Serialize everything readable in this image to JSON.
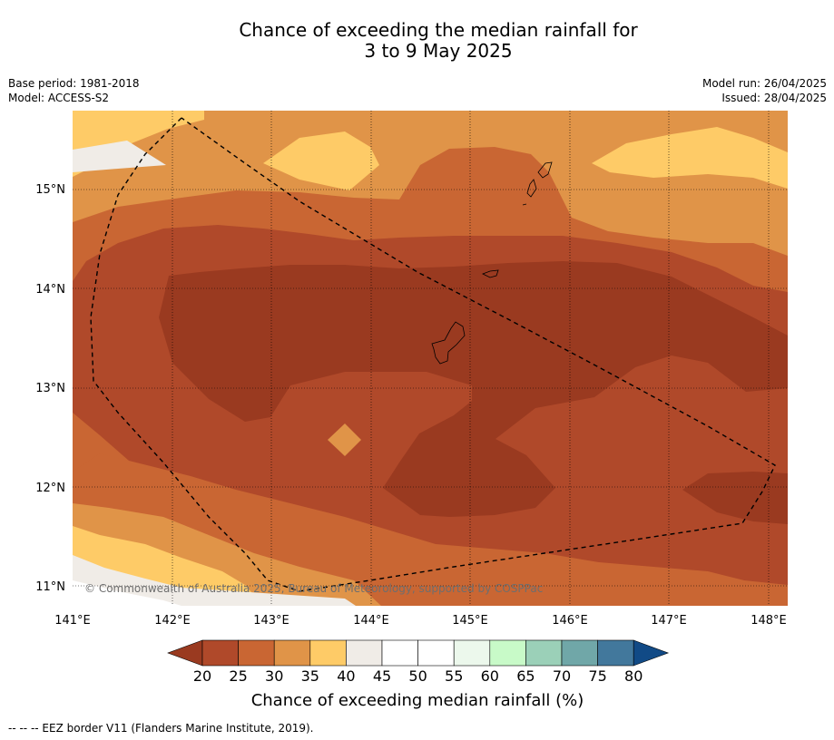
{
  "title_line1": "Chance of exceeding the median rainfall for",
  "title_line2": "3 to 9 May 2025",
  "meta": {
    "base_period": "Base period: 1981-2018",
    "model": "Model: ACCESS-S2",
    "model_run": "Model run: 26/04/2025",
    "issued": "Issued: 28/04/2025"
  },
  "map": {
    "lon_labels": [
      "141°E",
      "142°E",
      "143°E",
      "144°E",
      "145°E",
      "146°E",
      "147°E",
      "148°E"
    ],
    "lat_labels": [
      "15°N",
      "14°N",
      "13°N",
      "12°N",
      "11°N"
    ],
    "copyright": "© Commonwealth of Australia 2025, Bureau of Meteorology, supported by COSPPac"
  },
  "colorbar": {
    "ticks": [
      "20",
      "25",
      "30",
      "35",
      "40",
      "45",
      "50",
      "55",
      "60",
      "65",
      "70",
      "75",
      "80"
    ],
    "colors": [
      "#9a3a20",
      "#b0492a",
      "#c96633",
      "#e09448",
      "#fecb67",
      "#f0ece7",
      "#ffffff",
      "#ffffff",
      "#ecf8ec",
      "#c8fac8",
      "#9bd0b8",
      "#70a7a8",
      "#42789c",
      "#114a86"
    ],
    "label": "Chance of exceeding median rainfall (%)"
  },
  "footer": "--  --  -- EEZ border V11 (Flanders Marine Institute, 2019)."
}
